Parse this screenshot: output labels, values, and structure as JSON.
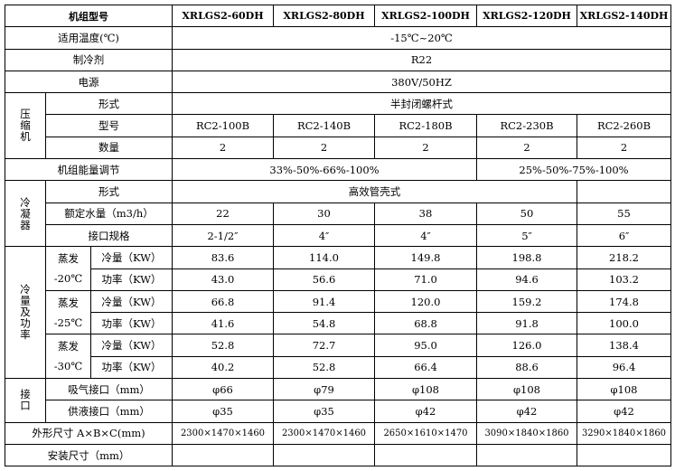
{
  "header": {
    "label": "机组型号",
    "models": [
      "XRLGS2-60DH",
      "XRLGS2-80DH",
      "XRLGS2-100DH",
      "XRLGS2-120DH",
      "XRLGS2-140DH"
    ]
  },
  "general": [
    {
      "label": "适用温度(℃)",
      "value": "-15℃~20℃"
    },
    {
      "label": "制冷剂",
      "value": "R22"
    },
    {
      "label": "电源",
      "value": "380V/50HZ"
    }
  ],
  "compressor": {
    "group": "压缩机",
    "type": {
      "label": "形式",
      "value": "半封闭螺杆式"
    },
    "model": {
      "label": "型号",
      "values": [
        "RC2-100B",
        "RC2-140B",
        "RC2-180B",
        "RC2-230B",
        "RC2-260B"
      ]
    },
    "count": {
      "label": "数量",
      "values": [
        "2",
        "2",
        "2",
        "2",
        "2"
      ]
    }
  },
  "energy": {
    "label": "机组能量调节",
    "values": [
      "33%-50%-66%-100%",
      "25%-50%-75%-100%"
    ]
  },
  "condenser": {
    "group": "冷凝器",
    "type": {
      "label": "形式",
      "value": "高效管壳式"
    },
    "flow": {
      "label": "额定水量（m3/h）",
      "values": [
        "22",
        "30",
        "38",
        "50",
        "55"
      ]
    },
    "connection": {
      "label": "接口规格",
      "values": [
        "2-1/2″",
        "4″",
        "4″",
        "5″",
        "6″"
      ]
    }
  },
  "capacity": {
    "group": "冷量及功率",
    "conditions": [
      {
        "evap": "蒸发",
        "temp": "-20℃",
        "cooling": {
          "label": "冷量（KW）",
          "values": [
            "83.6",
            "114.0",
            "149.8",
            "198.8",
            "218.2"
          ]
        },
        "power": {
          "label": "功率（KW）",
          "values": [
            "43.0",
            "56.6",
            "71.0",
            "94.6",
            "103.2"
          ]
        }
      },
      {
        "evap": "蒸发",
        "temp": "-25℃",
        "cooling": {
          "label": "冷量（KW）",
          "values": [
            "66.8",
            "91.4",
            "120.0",
            "159.2",
            "174.8"
          ]
        },
        "power": {
          "label": "功率（KW）",
          "values": [
            "41.6",
            "54.8",
            "68.8",
            "91.8",
            "100.0"
          ]
        }
      },
      {
        "evap": "蒸发",
        "temp": "-30℃",
        "cooling": {
          "label": "冷量（KW）",
          "values": [
            "52.8",
            "72.7",
            "95.0",
            "126.0",
            "138.4"
          ]
        },
        "power": {
          "label": "功率（KW）",
          "values": [
            "40.2",
            "52.8",
            "66.4",
            "88.6",
            "96.4"
          ]
        }
      }
    ]
  },
  "ports": {
    "group": "接口",
    "suction": {
      "label": "吸气接口（mm）",
      "values": [
        "φ66",
        "φ79",
        "φ108",
        "φ108",
        "φ108"
      ]
    },
    "liquid": {
      "label": "供液接口（mm）",
      "values": [
        "φ35",
        "φ35",
        "φ42",
        "φ42",
        "φ42"
      ]
    }
  },
  "dimensions": {
    "label": "外形尺寸 A×B×C(mm)",
    "values": [
      "2300×1470×1460",
      "2300×1470×1460",
      "2650×1610×1470",
      "3090×1840×1860",
      "3290×1840×1860"
    ]
  },
  "install": {
    "label": "安装尺寸（mm）"
  }
}
